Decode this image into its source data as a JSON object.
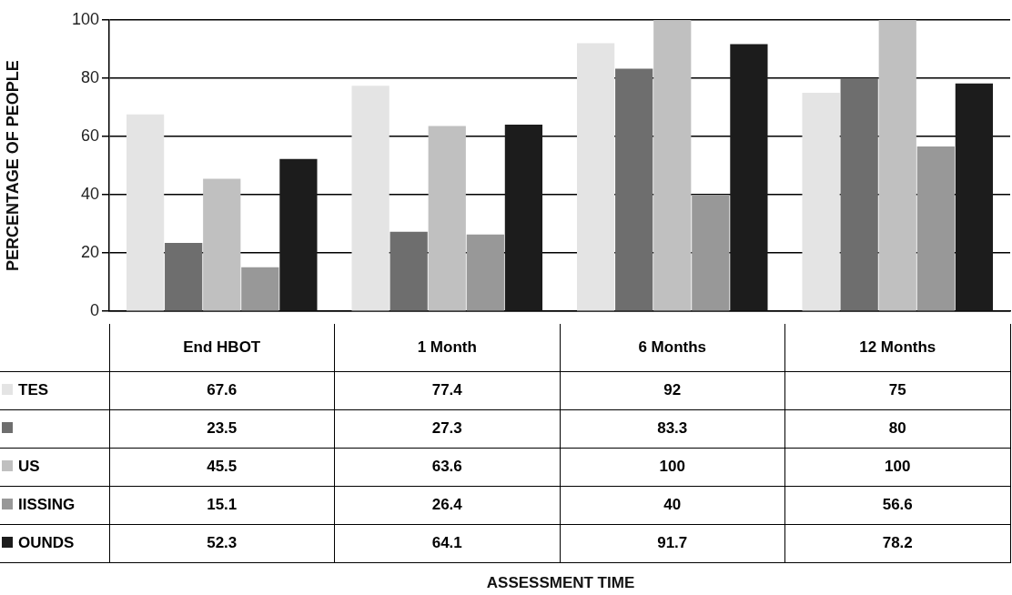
{
  "chart_data": {
    "type": "bar",
    "ylabel": "PERCENTAGE OF PEOPLE",
    "annotations": [
      "ASSESSMENT TIME"
    ],
    "categories": [
      "End HBOT",
      "1 Month",
      "6 Months",
      "12 Months"
    ],
    "series": [
      {
        "name": "TES",
        "color": "#e4e4e4",
        "values": [
          67.6,
          77.4,
          92,
          75
        ]
      },
      {
        "color": "#6e6e6e",
        "values": [
          23.5,
          27.3,
          83.3,
          80
        ]
      },
      {
        "name": "US",
        "color": "#c0c0c0",
        "values": [
          45.5,
          63.6,
          100,
          100
        ]
      },
      {
        "name": "IISSING",
        "color": "#989898",
        "values": [
          15.1,
          26.4,
          40,
          56.6
        ]
      },
      {
        "name": "OUNDS",
        "color": "#1c1c1c",
        "values": [
          52.3,
          64.1,
          91.7,
          78.2
        ]
      }
    ],
    "ylim": [
      0,
      100
    ],
    "yticks": [
      0,
      20,
      40,
      60,
      80,
      100
    ],
    "grid": "y",
    "legend": "bottom",
    "data_labels": true
  }
}
